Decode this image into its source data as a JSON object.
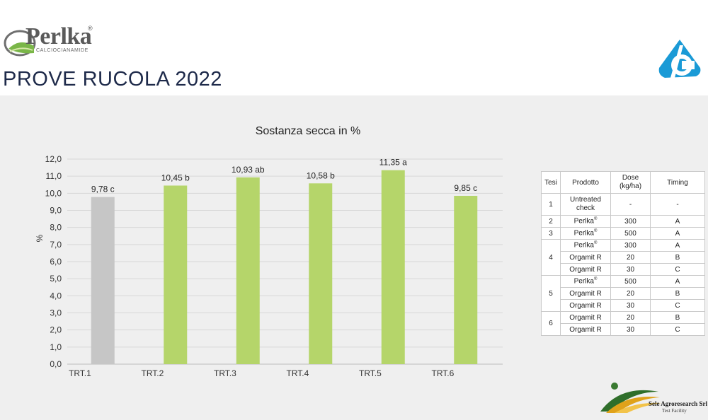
{
  "header": {
    "logo_word": "Perlka",
    "logo_registered": "®",
    "logo_sub": "CALCIOCIANAMIDE",
    "title": "PROVE RUCOLA 2022",
    "brand_icon": "brand-logo-icon"
  },
  "colors": {
    "accent": "#b5d56a",
    "control": "#c6c6c6",
    "panel": "#efefef",
    "brand_blue": "#1a9ad6"
  },
  "chart_data": {
    "type": "bar",
    "title": "Sostanza secca in %",
    "ylabel": "%",
    "xlabel": "",
    "ylim": [
      0,
      12
    ],
    "yticks": [
      "0,0",
      "1,0",
      "2,0",
      "3,0",
      "4,0",
      "5,0",
      "6,0",
      "7,0",
      "8,0",
      "9,0",
      "10,0",
      "11,0",
      "12,0"
    ],
    "categories": [
      "TRT.1",
      "TRT.2",
      "TRT.3",
      "TRT.4",
      "TRT.5",
      "TRT.6"
    ],
    "values": [
      9.78,
      10.45,
      10.93,
      10.58,
      11.35,
      9.85
    ],
    "data_labels": [
      "9,78 c",
      "10,45 b",
      "10,93 ab",
      "10,58 b",
      "11,35 a",
      "9,85 c"
    ],
    "bar_colors": [
      "#c6c6c6",
      "#b5d56a",
      "#b5d56a",
      "#b5d56a",
      "#b5d56a",
      "#b5d56a"
    ],
    "grid": true
  },
  "table": {
    "headers": [
      "Tesi",
      "Prodotto",
      "Dose\n(kg/ha)",
      "Timing"
    ],
    "groups": [
      {
        "tesi": "1",
        "rows": [
          {
            "prodotto": "Untreated check",
            "sup": "",
            "dose": "-",
            "timing": "-"
          }
        ]
      },
      {
        "tesi": "2",
        "rows": [
          {
            "prodotto": "Perlka",
            "sup": "®",
            "dose": "300",
            "timing": "A"
          }
        ]
      },
      {
        "tesi": "3",
        "rows": [
          {
            "prodotto": "Perlka",
            "sup": "®",
            "dose": "500",
            "timing": "A"
          }
        ]
      },
      {
        "tesi": "4",
        "rows": [
          {
            "prodotto": "Perlka",
            "sup": "®",
            "dose": "300",
            "timing": "A"
          },
          {
            "prodotto": "Orgamit R",
            "sup": "",
            "dose": "20",
            "timing": "B"
          },
          {
            "prodotto": "Orgamit R",
            "sup": "",
            "dose": "30",
            "timing": "C"
          }
        ]
      },
      {
        "tesi": "5",
        "rows": [
          {
            "prodotto": "Perlka",
            "sup": "®",
            "dose": "500",
            "timing": "A"
          },
          {
            "prodotto": "Orgamit R",
            "sup": "",
            "dose": "20",
            "timing": "B"
          },
          {
            "prodotto": "Orgamit R",
            "sup": "",
            "dose": "30",
            "timing": "C"
          }
        ]
      },
      {
        "tesi": "6",
        "rows": [
          {
            "prodotto": "Orgamit R",
            "sup": "",
            "dose": "20",
            "timing": "B"
          },
          {
            "prodotto": "Orgamit R",
            "sup": "",
            "dose": "30",
            "timing": "C"
          }
        ]
      }
    ]
  },
  "footer": {
    "company": "Sele Agroresearch Srl",
    "company_sub": "Test Facility"
  }
}
